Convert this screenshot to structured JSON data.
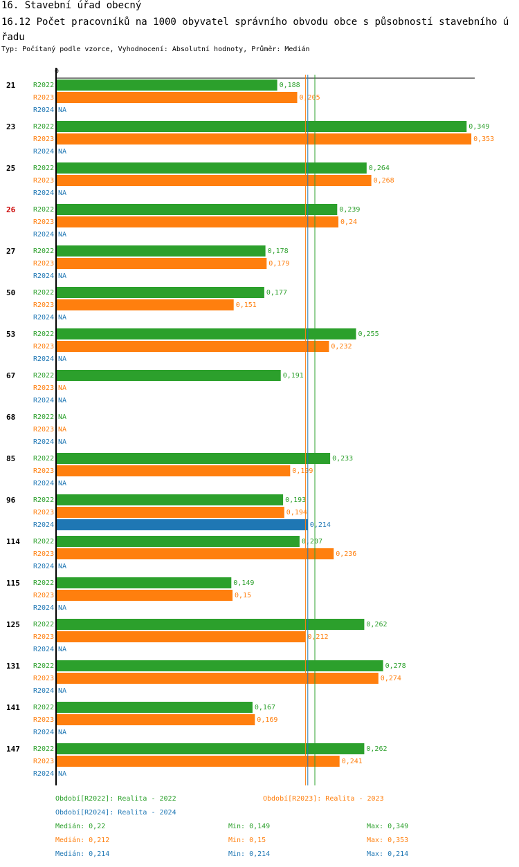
{
  "header": {
    "section": "16. Stavební úřad obecný",
    "title": "16.12 Počet pracovníků na 1000 obyvatel správního obvodu obce s působností stavebního úřadu",
    "subtitle": "Typ: Počítaný podle vzorce, Vyhodnocení: Absolutní hodnoty, Průměr: Medián"
  },
  "colors": {
    "R2022": "#2ca02c",
    "R2023": "#ff7f0e",
    "R2024": "#1f77b4",
    "highlight": "#cc0000"
  },
  "chart_data": {
    "type": "bar",
    "orientation": "horizontal",
    "axis_zero_label": "0",
    "xlim": [
      0,
      0.36
    ],
    "series_names": [
      "R2022",
      "R2023",
      "R2024"
    ],
    "highlight_category": "26",
    "na_label": "NA",
    "categories": [
      "21",
      "23",
      "25",
      "26",
      "27",
      "50",
      "53",
      "67",
      "68",
      "85",
      "96",
      "114",
      "115",
      "125",
      "131",
      "141",
      "147"
    ],
    "values": {
      "R2022": [
        0.188,
        0.349,
        0.264,
        0.239,
        0.178,
        0.177,
        0.255,
        0.191,
        null,
        0.233,
        0.193,
        0.207,
        0.149,
        0.262,
        0.278,
        0.167,
        0.262
      ],
      "R2023": [
        0.205,
        0.353,
        0.268,
        0.24,
        0.179,
        0.151,
        0.232,
        null,
        null,
        0.199,
        0.194,
        0.236,
        0.15,
        0.212,
        0.274,
        0.169,
        0.241
      ],
      "R2024": [
        null,
        null,
        null,
        null,
        null,
        null,
        null,
        null,
        null,
        null,
        0.214,
        null,
        null,
        null,
        null,
        null,
        null
      ]
    },
    "medians": {
      "R2022": 0.22,
      "R2023": 0.212,
      "R2024": 0.214
    }
  },
  "legend": {
    "r2022": "Období[R2022]: Realita - 2022",
    "r2023": "Období[R2023]: Realita - 2023",
    "r2024": "Období[R2024]: Realita - 2024",
    "stats": [
      {
        "median": "Medián: 0,22",
        "min": "Min: 0,149",
        "max": "Max: 0,349",
        "color": "#2ca02c"
      },
      {
        "median": "Medián: 0,212",
        "min": "Min: 0,15",
        "max": "Max: 0,353",
        "color": "#ff7f0e"
      },
      {
        "median": "Medián: 0,214",
        "min": "Min: 0,214",
        "max": "Max: 0,214",
        "color": "#1f77b4"
      }
    ]
  }
}
